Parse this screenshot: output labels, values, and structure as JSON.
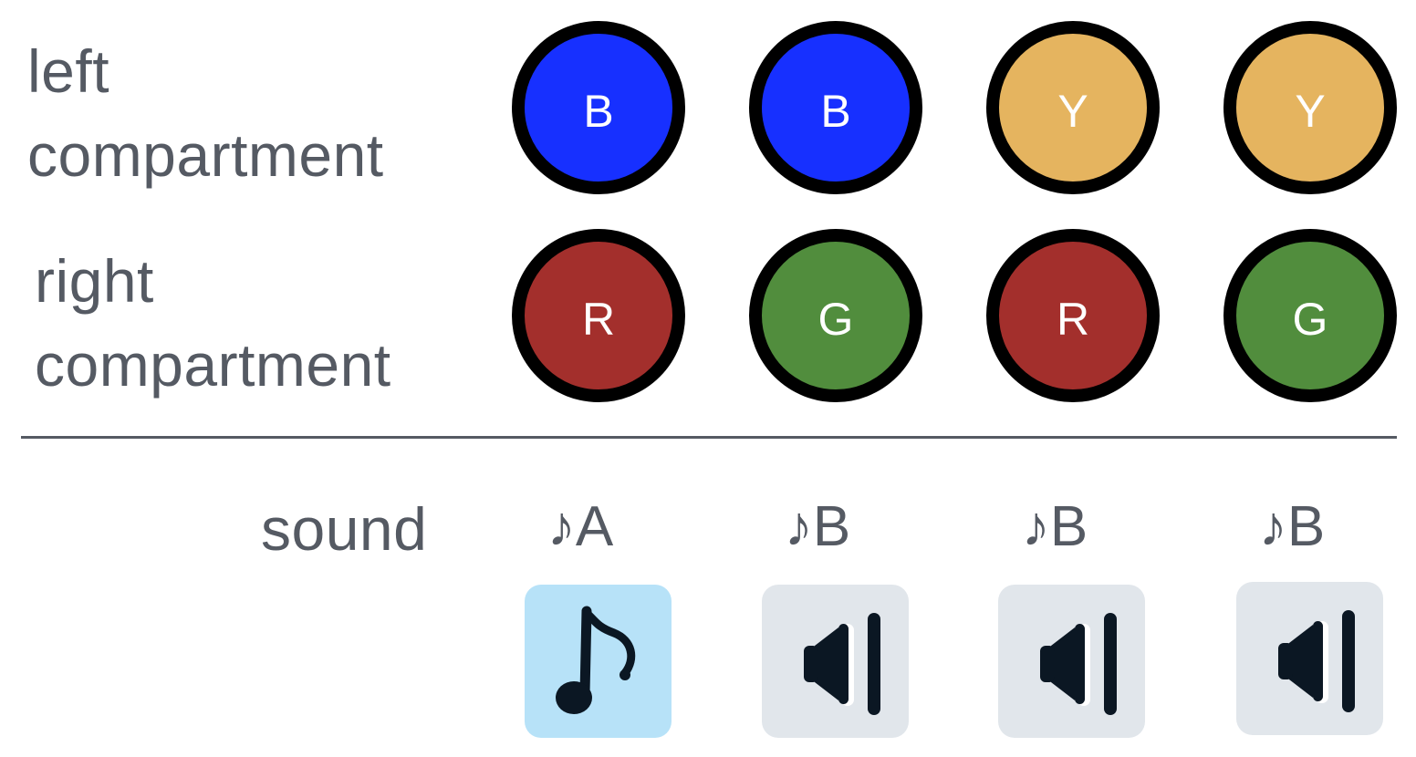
{
  "labels": {
    "left_compartment_line1": "left",
    "left_compartment_line2": "compartment",
    "right_compartment_line1": "right",
    "right_compartment_line2": "compartment",
    "sound": "sound"
  },
  "left_compartment": [
    {
      "letter": "B",
      "color": "#1730ff"
    },
    {
      "letter": "B",
      "color": "#1730ff"
    },
    {
      "letter": "Y",
      "color": "#e5b45f"
    },
    {
      "letter": "Y",
      "color": "#e5b45f"
    }
  ],
  "right_compartment": [
    {
      "letter": "R",
      "color": "#a32f2c"
    },
    {
      "letter": "G",
      "color": "#518d3d"
    },
    {
      "letter": "R",
      "color": "#a32f2c"
    },
    {
      "letter": "G",
      "color": "#518d3d"
    }
  ],
  "sounds": [
    {
      "note": "♪A",
      "icon": "music-note-icon",
      "state": "active",
      "bg": "#b7e2f8"
    },
    {
      "note": "♪B",
      "icon": "speaker-icon",
      "state": "inactive",
      "bg": "#e1e6eb"
    },
    {
      "note": "♪B",
      "icon": "speaker-icon",
      "state": "inactive",
      "bg": "#e1e6eb"
    },
    {
      "note": "♪B",
      "icon": "speaker-icon",
      "state": "inactive",
      "bg": "#e1e6eb"
    }
  ],
  "colors": {
    "text": "#555a63",
    "divider": "#555a63",
    "ball_border": "#000000",
    "icon": "#0b1723"
  }
}
